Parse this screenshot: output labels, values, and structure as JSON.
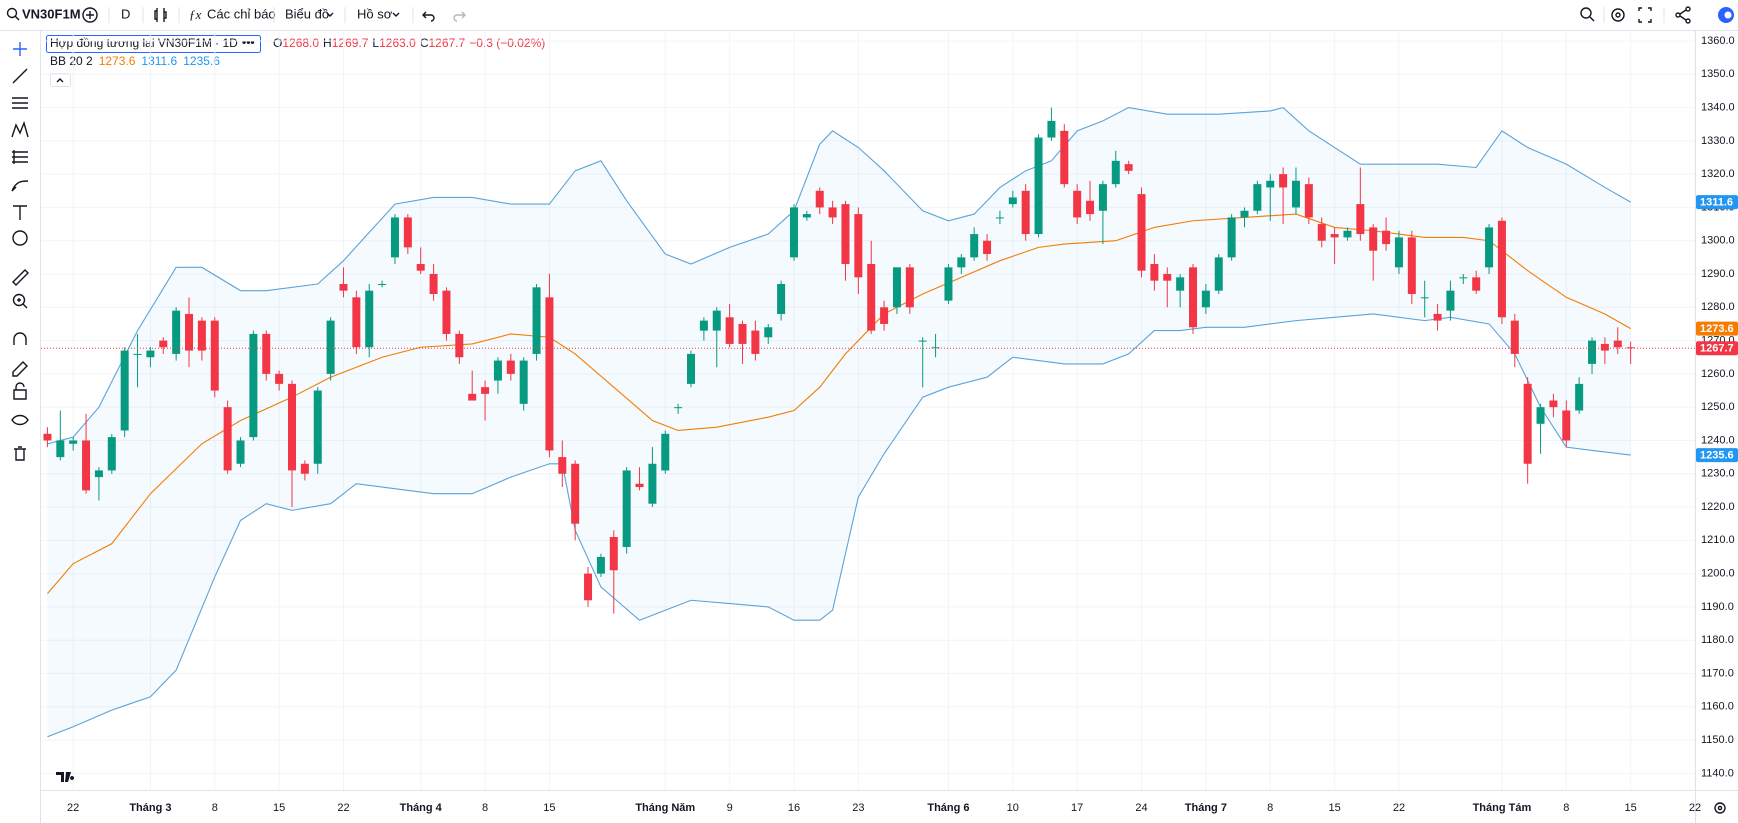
{
  "toolbar": {
    "symbol": "VN30F1M",
    "interval": "D",
    "indicators": "Các chỉ báo",
    "chart": "Biểu đồ",
    "profile": "Hồ sơ"
  },
  "legend": {
    "title": "Hợp đồng tương lai VN30F1M · 1D",
    "ohlc": [
      {
        "key": "O",
        "value": "1268.0"
      },
      {
        "key": "H",
        "value": "1269.7"
      },
      {
        "key": "L",
        "value": "1263.0"
      },
      {
        "key": "C",
        "value": "1267.7"
      }
    ],
    "change": "−0.3 (−0.02%)",
    "bb_label": "BB 20 2",
    "bb_values": [
      {
        "text": "1273.6",
        "color": "#f57c00"
      },
      {
        "text": "1311.6",
        "color": "#2196f3"
      },
      {
        "text": "1235.6",
        "color": "#2196f3"
      }
    ]
  },
  "chart_data": {
    "type": "candlestick",
    "up_color": "#089981",
    "down_color": "#f23645",
    "grid": true,
    "xlim": [
      -0.5,
      128
    ],
    "ylim": [
      1135,
      1363
    ],
    "yticks": [
      {
        "value": 1140,
        "label": "1140.0"
      },
      {
        "value": 1150,
        "label": "1150.0"
      },
      {
        "value": 1160,
        "label": "1160.0"
      },
      {
        "value": 1170,
        "label": "1170.0"
      },
      {
        "value": 1180,
        "label": "1180.0"
      },
      {
        "value": 1190,
        "label": "1190.0"
      },
      {
        "value": 1200,
        "label": "1200.0"
      },
      {
        "value": 1210,
        "label": "1210.0"
      },
      {
        "value": 1220,
        "label": "1220.0"
      },
      {
        "value": 1230,
        "label": "1230.0"
      },
      {
        "value": 1240,
        "label": "1240.0"
      },
      {
        "value": 1250,
        "label": "1250.0"
      },
      {
        "value": 1260,
        "label": "1260.0"
      },
      {
        "value": 1270,
        "label": "1270.0"
      },
      {
        "value": 1280,
        "label": "1280.0"
      },
      {
        "value": 1290,
        "label": "1290.0"
      },
      {
        "value": 1300,
        "label": "1300.0"
      },
      {
        "value": 1310,
        "label": "1310.0"
      },
      {
        "value": 1320,
        "label": "1320.0"
      },
      {
        "value": 1330,
        "label": "1330.0"
      },
      {
        "value": 1340,
        "label": "1340.0"
      },
      {
        "value": 1350,
        "label": "1350.0"
      },
      {
        "value": 1360,
        "label": "1360.0"
      }
    ],
    "xticks": [
      {
        "value": 2,
        "label": "22"
      },
      {
        "value": 8,
        "label": "Tháng 3"
      },
      {
        "value": 13,
        "label": "8"
      },
      {
        "value": 18,
        "label": "15"
      },
      {
        "value": 23,
        "label": "22"
      },
      {
        "value": 29,
        "label": "Tháng 4"
      },
      {
        "value": 34,
        "label": "8"
      },
      {
        "value": 39,
        "label": "15"
      },
      {
        "value": 48,
        "label": "Tháng Năm"
      },
      {
        "value": 53,
        "label": "9"
      },
      {
        "value": 58,
        "label": "16"
      },
      {
        "value": 63,
        "label": "23"
      },
      {
        "value": 70,
        "label": "Tháng 6"
      },
      {
        "value": 75,
        "label": "10"
      },
      {
        "value": 80,
        "label": "17"
      },
      {
        "value": 85,
        "label": "24"
      },
      {
        "value": 90,
        "label": "Tháng 7"
      },
      {
        "value": 95,
        "label": "8"
      },
      {
        "value": 100,
        "label": "15"
      },
      {
        "value": 105,
        "label": "22"
      },
      {
        "value": 113,
        "label": "Tháng Tám"
      },
      {
        "value": 118,
        "label": "8"
      },
      {
        "value": 123,
        "label": "15"
      },
      {
        "value": 128,
        "label": "22"
      }
    ],
    "ohlc": [
      [
        1242,
        1244,
        1238,
        1240
      ],
      [
        1235,
        1249,
        1234,
        1240
      ],
      [
        1239,
        1241,
        1237,
        1240
      ],
      [
        1240,
        1248,
        1224,
        1225
      ],
      [
        1229,
        1232,
        1222,
        1231
      ],
      [
        1231,
        1242,
        1230,
        1241
      ],
      [
        1243,
        1268,
        1241,
        1267
      ],
      [
        1266,
        1272,
        1256,
        1266
      ],
      [
        1265,
        1268,
        1262,
        1267
      ],
      [
        1270,
        1271,
        1266,
        1268
      ],
      [
        1266,
        1280,
        1264,
        1279
      ],
      [
        1278,
        1283,
        1262,
        1267
      ],
      [
        1276,
        1277,
        1264,
        1267
      ],
      [
        1276,
        1277,
        1253,
        1255
      ],
      [
        1250,
        1252,
        1230,
        1231
      ],
      [
        1233,
        1241,
        1232,
        1240
      ],
      [
        1241,
        1273,
        1240,
        1272
      ],
      [
        1272,
        1273,
        1258,
        1260
      ],
      [
        1260,
        1261,
        1255,
        1257
      ],
      [
        1257,
        1258,
        1220,
        1231
      ],
      [
        1233,
        1234,
        1228,
        1230
      ],
      [
        1233,
        1256,
        1230,
        1255
      ],
      [
        1260,
        1277,
        1258,
        1276
      ],
      [
        1287,
        1292,
        1283,
        1285
      ],
      [
        1283,
        1285,
        1266,
        1268
      ],
      [
        1268,
        1287,
        1265,
        1285
      ],
      [
        1287,
        1288,
        1286,
        1287
      ],
      [
        1295,
        1308,
        1293,
        1307
      ],
      [
        1307,
        1308,
        1296,
        1298
      ],
      [
        1293,
        1298,
        1290,
        1291
      ],
      [
        1290,
        1293,
        1282,
        1284
      ],
      [
        1285,
        1286,
        1270,
        1272
      ],
      [
        1272,
        1273,
        1263,
        1265
      ],
      [
        1254,
        1261,
        1252,
        1252
      ],
      [
        1256,
        1258,
        1246,
        1254
      ],
      [
        1258,
        1265,
        1254,
        1264
      ],
      [
        1264,
        1266,
        1258,
        1260
      ],
      [
        1251,
        1265,
        1249,
        1264
      ],
      [
        1266,
        1287,
        1264,
        1286
      ],
      [
        1283,
        1290,
        1235,
        1237
      ],
      [
        1235,
        1240,
        1226,
        1230
      ],
      [
        1233,
        1234,
        1210,
        1215
      ],
      [
        1200,
        1202,
        1190,
        1192
      ],
      [
        1200,
        1206,
        1199,
        1205
      ],
      [
        1211,
        1213,
        1188,
        1201
      ],
      [
        1208,
        1232,
        1206,
        1231
      ],
      [
        1227,
        1232,
        1225,
        1226
      ],
      [
        1221,
        1238,
        1220,
        1233
      ],
      [
        1231,
        1243,
        1230,
        1242
      ],
      [
        1250,
        1251,
        1248,
        1250
      ],
      [
        1257,
        1267,
        1256,
        1266
      ],
      [
        1273,
        1277,
        1270,
        1276
      ],
      [
        1273,
        1280,
        1262,
        1279
      ],
      [
        1277,
        1281,
        1268,
        1269
      ],
      [
        1275,
        1276,
        1263,
        1269
      ],
      [
        1273,
        1276,
        1264,
        1266
      ],
      [
        1271,
        1275,
        1269,
        1274
      ],
      [
        1278,
        1288,
        1276,
        1287
      ],
      [
        1295,
        1311,
        1294,
        1310
      ],
      [
        1307,
        1309,
        1306,
        1308
      ],
      [
        1315,
        1316,
        1308,
        1310
      ],
      [
        1310,
        1312,
        1305,
        1307
      ],
      [
        1311,
        1312,
        1288,
        1293
      ],
      [
        1308,
        1310,
        1284,
        1289
      ],
      [
        1293,
        1300,
        1272,
        1273
      ],
      [
        1280,
        1282,
        1273,
        1275
      ],
      [
        1280,
        1292,
        1278,
        1292
      ],
      [
        1292,
        1293,
        1278,
        1280
      ],
      [
        1270,
        1271,
        1256,
        1270
      ],
      [
        1268,
        1272,
        1265,
        1268
      ],
      [
        1282,
        1293,
        1281,
        1292
      ],
      [
        1292,
        1296,
        1290,
        1295
      ],
      [
        1295,
        1304,
        1294,
        1302
      ],
      [
        1300,
        1302,
        1294,
        1296
      ],
      [
        1307,
        1309,
        1305,
        1307
      ],
      [
        1311,
        1315,
        1310,
        1313
      ],
      [
        1315,
        1317,
        1300,
        1302
      ],
      [
        1302,
        1332,
        1301,
        1331
      ],
      [
        1331,
        1340,
        1330,
        1336
      ],
      [
        1333,
        1335,
        1316,
        1317
      ],
      [
        1315,
        1317,
        1305,
        1307
      ],
      [
        1312,
        1318,
        1306,
        1308
      ],
      [
        1309,
        1318,
        1299,
        1317
      ],
      [
        1317,
        1327,
        1316,
        1324
      ],
      [
        1323,
        1324,
        1320,
        1321
      ],
      [
        1314,
        1316,
        1289,
        1291
      ],
      [
        1293,
        1296,
        1285,
        1288
      ],
      [
        1290,
        1292,
        1280,
        1288
      ],
      [
        1285,
        1290,
        1280,
        1289
      ],
      [
        1292,
        1293,
        1272,
        1274
      ],
      [
        1280,
        1287,
        1278,
        1285
      ],
      [
        1285,
        1296,
        1284,
        1295
      ],
      [
        1295,
        1308,
        1294,
        1307
      ],
      [
        1307,
        1310,
        1304,
        1309
      ],
      [
        1309,
        1318,
        1308,
        1317
      ],
      [
        1316,
        1320,
        1306,
        1318
      ],
      [
        1320,
        1322,
        1305,
        1316
      ],
      [
        1310,
        1322,
        1308,
        1318
      ],
      [
        1317,
        1319,
        1305,
        1307
      ],
      [
        1305,
        1307,
        1298,
        1300
      ],
      [
        1302,
        1304,
        1293,
        1301
      ],
      [
        1301,
        1304,
        1300,
        1303
      ],
      [
        1311,
        1322,
        1300,
        1302
      ],
      [
        1304,
        1305,
        1288,
        1297
      ],
      [
        1303,
        1307,
        1297,
        1299
      ],
      [
        1292,
        1303,
        1290,
        1301
      ],
      [
        1301,
        1303,
        1281,
        1284
      ],
      [
        1283,
        1288,
        1277,
        1283
      ],
      [
        1278,
        1281,
        1273,
        1276
      ],
      [
        1279,
        1288,
        1276,
        1285
      ],
      [
        1289,
        1290,
        1287,
        1289
      ],
      [
        1289,
        1291,
        1284,
        1285
      ],
      [
        1292,
        1305,
        1290,
        1304
      ],
      [
        1306,
        1307,
        1275,
        1277
      ],
      [
        1276,
        1278,
        1262,
        1266
      ],
      [
        1257,
        1259,
        1227,
        1233
      ],
      [
        1245,
        1251,
        1236,
        1250
      ],
      [
        1252,
        1254,
        1247,
        1250
      ],
      [
        1249,
        1252,
        1238,
        1240
      ],
      [
        1249,
        1259,
        1248,
        1257
      ],
      [
        1263,
        1271,
        1260,
        1270
      ],
      [
        1269,
        1271,
        1263,
        1267
      ],
      [
        1270,
        1274,
        1266,
        1268
      ],
      [
        1268,
        1269.7,
        1263,
        1267.7
      ]
    ],
    "bands": [
      {
        "color": "#5ba3d9",
        "x": [
          0,
          2,
          4,
          7,
          10,
          12,
          15,
          17,
          21,
          23,
          27,
          30,
          33,
          36,
          39,
          41,
          43,
          45,
          48,
          50,
          53,
          56,
          58,
          60,
          61,
          63,
          65,
          68,
          70,
          72,
          74,
          76,
          78,
          80,
          82,
          84,
          87,
          91,
          95,
          96,
          98,
          102,
          108,
          111,
          113,
          115,
          118,
          121,
          123
        ],
        "values": [
          1239,
          1241,
          1250,
          1273,
          1292,
          1292,
          1285,
          1285,
          1287,
          1294,
          1311,
          1313,
          1313,
          1311,
          1311,
          1321,
          1324,
          1312,
          1296,
          1293,
          1298,
          1302,
          1309,
          1329,
          1333,
          1328,
          1321,
          1309,
          1306,
          1308,
          1316,
          1321,
          1324,
          1333,
          1336,
          1340,
          1338,
          1338,
          1339,
          1340,
          1333,
          1323,
          1323,
          1322,
          1333,
          1328,
          1323,
          1316,
          1311.6
        ]
      },
      {
        "color": "#f57c00",
        "x": [
          0,
          2,
          5,
          8,
          12,
          15,
          19,
          22,
          26,
          29,
          33,
          36,
          39,
          41,
          44,
          47,
          49,
          52,
          56,
          58,
          60,
          62,
          65,
          68,
          71,
          74,
          77,
          79,
          83,
          86,
          89,
          93,
          97,
          100,
          103,
          107,
          110,
          112,
          115,
          118,
          121,
          123
        ],
        "values": [
          1194,
          1203,
          1209,
          1224,
          1239,
          1246,
          1253,
          1259,
          1265,
          1268,
          1269,
          1272,
          1271,
          1266,
          1256,
          1246,
          1243,
          1244,
          1247,
          1249,
          1256,
          1266,
          1278,
          1284,
          1289,
          1294,
          1298,
          1299,
          1300,
          1304,
          1306,
          1307,
          1308,
          1304,
          1303,
          1301,
          1301,
          1300,
          1291,
          1283,
          1278,
          1273.6
        ]
      },
      {
        "color": "#5ba3d9",
        "x": [
          0,
          2,
          5,
          8,
          10,
          13,
          15,
          17,
          19,
          22,
          24,
          26,
          30,
          33,
          36,
          39,
          40,
          41,
          43,
          46,
          48,
          50,
          53,
          56,
          58,
          60,
          61,
          63,
          65,
          68,
          70,
          73,
          75,
          77,
          79,
          82,
          84,
          86,
          88,
          90,
          93,
          97,
          100,
          103,
          107,
          109,
          112,
          114,
          116,
          118,
          120,
          123
        ],
        "values": [
          1151,
          1154,
          1159,
          1163,
          1171,
          1199,
          1216,
          1221,
          1219,
          1221,
          1227,
          1226,
          1224,
          1224,
          1229,
          1233,
          1233,
          1213,
          1196,
          1186,
          1189,
          1192,
          1191,
          1190,
          1186,
          1186,
          1189,
          1223,
          1236,
          1253,
          1256,
          1259,
          1265,
          1264,
          1263,
          1263,
          1266,
          1273,
          1273,
          1274,
          1274,
          1276,
          1277,
          1278,
          1276,
          1277,
          1275,
          1266,
          1250,
          1238,
          1237,
          1235.6
        ]
      }
    ],
    "band_fill": "#2196f3",
    "price_labels": [
      {
        "value": 1311.6,
        "color": "#2196f3"
      },
      {
        "value": 1273.6,
        "color": "#f57c00"
      },
      {
        "value": 1267.7,
        "color": "#f23645"
      },
      {
        "value": 1235.6,
        "color": "#2196f3"
      }
    ]
  }
}
